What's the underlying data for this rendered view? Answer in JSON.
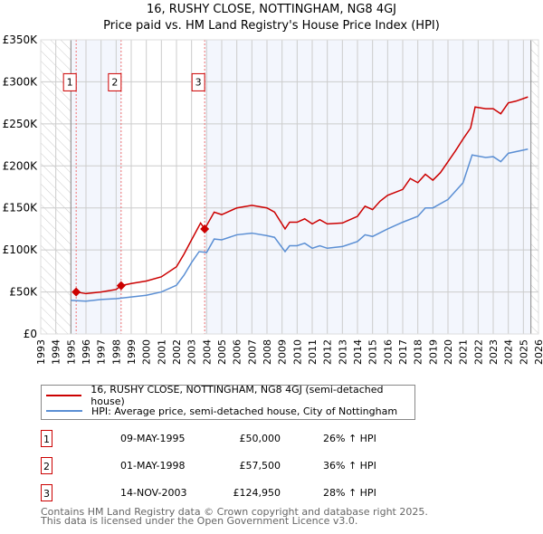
{
  "chart_data": {
    "type": "line",
    "title": "16, RUSHY CLOSE, NOTTINGHAM, NG8 4GJ",
    "subtitle": "Price paid vs. HM Land Registry's House Price Index (HPI)",
    "xlim": [
      1993,
      2026
    ],
    "ylim": [
      0,
      350000
    ],
    "y_ticks": [
      {
        "v": 0,
        "label": "£0"
      },
      {
        "v": 50000,
        "label": "£50K"
      },
      {
        "v": 100000,
        "label": "£100K"
      },
      {
        "v": 150000,
        "label": "£150K"
      },
      {
        "v": 200000,
        "label": "£200K"
      },
      {
        "v": 250000,
        "label": "£250K"
      },
      {
        "v": 300000,
        "label": "£300K"
      },
      {
        "v": 350000,
        "label": "£350K"
      }
    ],
    "x_ticks": [
      "1993",
      "1994",
      "1995",
      "1996",
      "1997",
      "1998",
      "1999",
      "2000",
      "2001",
      "2002",
      "2003",
      "2004",
      "2005",
      "2006",
      "2007",
      "2008",
      "2009",
      "2010",
      "2011",
      "2012",
      "2013",
      "2014",
      "2015",
      "2016",
      "2017",
      "2018",
      "2019",
      "2020",
      "2021",
      "2022",
      "2023",
      "2024",
      "2025",
      "2026"
    ],
    "grid": true,
    "series": [
      {
        "name": "16, RUSHY CLOSE, NOTTINGHAM, NG8 4GJ (semi-detached house)",
        "color": "#cc0000",
        "x": [
          1995.35,
          1996,
          1997,
          1998,
          1998.33,
          1999,
          2000,
          2001,
          2002,
          2002.5,
          2003,
          2003.6,
          2003.87,
          2004.5,
          2005,
          2006,
          2007,
          2008,
          2008.5,
          2009.2,
          2009.5,
          2010,
          2010.5,
          2011,
          2011.5,
          2012,
          2013,
          2014,
          2014.5,
          2015,
          2015.5,
          2016,
          2017,
          2017.5,
          2018,
          2018.5,
          2019,
          2019.5,
          2020,
          2020.5,
          2021,
          2021.5,
          2021.8,
          2022.5,
          2023,
          2023.5,
          2024,
          2024.5,
          2025.3
        ],
        "y": [
          50000,
          48000,
          50000,
          53000,
          57500,
          60000,
          63000,
          68000,
          80000,
          95000,
          112000,
          132000,
          124950,
          145000,
          142000,
          150000,
          153000,
          150000,
          145000,
          125000,
          133000,
          133000,
          137000,
          131000,
          136000,
          131000,
          132000,
          140000,
          152000,
          148000,
          158000,
          165000,
          172000,
          185000,
          180000,
          190000,
          183000,
          192000,
          205000,
          218000,
          232000,
          245000,
          270000,
          268000,
          268000,
          262000,
          275000,
          277000,
          282000
        ]
      },
      {
        "name": "HPI: Average price, semi-detached house, City of Nottingham",
        "color": "#5b8fd4",
        "x": [
          1995,
          1996,
          1997,
          1998,
          1999,
          2000,
          2001,
          2002,
          2002.5,
          2003,
          2003.5,
          2004,
          2004.5,
          2005,
          2006,
          2007,
          2008,
          2008.5,
          2009.2,
          2009.5,
          2010,
          2010.5,
          2011,
          2011.5,
          2012,
          2013,
          2014,
          2014.5,
          2015,
          2016,
          2017,
          2018,
          2018.5,
          2019,
          2020,
          2020.5,
          2021,
          2021.6,
          2022.5,
          2023,
          2023.5,
          2024,
          2025.3
        ],
        "y": [
          40000,
          39000,
          41000,
          42000,
          44000,
          46000,
          50000,
          58000,
          70000,
          85000,
          98000,
          97000,
          113000,
          112000,
          118000,
          120000,
          117000,
          115000,
          98000,
          105000,
          105000,
          108000,
          102000,
          105000,
          102000,
          104000,
          110000,
          118000,
          116000,
          125000,
          133000,
          140000,
          150000,
          150000,
          160000,
          170000,
          180000,
          213000,
          210000,
          211000,
          205000,
          215000,
          220000
        ]
      }
    ],
    "sales": [
      {
        "n": "1",
        "x": 1995.35,
        "y": 50000
      },
      {
        "n": "2",
        "x": 1998.33,
        "y": 57500
      },
      {
        "n": "3",
        "x": 2003.87,
        "y": 124950
      }
    ],
    "data_start": 1995,
    "data_end": 2025.5
  },
  "legend": {
    "red": "16, RUSHY CLOSE, NOTTINGHAM, NG8 4GJ (semi-detached house)",
    "blue": "HPI: Average price, semi-detached house, City of Nottingham"
  },
  "transactions": [
    {
      "n": "1",
      "date": "09-MAY-1995",
      "price": "£50,000",
      "hpi": "26% ↑ HPI"
    },
    {
      "n": "2",
      "date": "01-MAY-1998",
      "price": "£57,500",
      "hpi": "36% ↑ HPI"
    },
    {
      "n": "3",
      "date": "14-NOV-2003",
      "price": "£124,950",
      "hpi": "28% ↑ HPI"
    }
  ],
  "footer": {
    "line1": "Contains HM Land Registry data © Crown copyright and database right 2025.",
    "line2": "This data is licensed under the Open Government Licence v3.0."
  }
}
